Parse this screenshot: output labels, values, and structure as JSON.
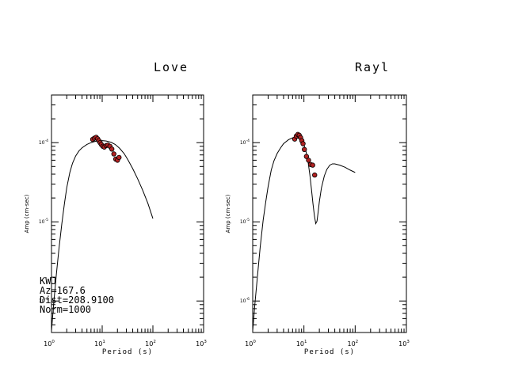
{
  "chart_data": [
    {
      "type": "line",
      "title": "Love",
      "xlabel": "Period (s)",
      "ylabel": "Amp (cm-sec)",
      "x_scale": "log",
      "y_scale": "log",
      "xlim": [
        1,
        1000
      ],
      "ylim": [
        4e-07,
        0.0004
      ],
      "x_ticks": [
        {
          "value": 1,
          "base": "10",
          "exp": "0"
        },
        {
          "value": 10,
          "base": "10",
          "exp": "1"
        },
        {
          "value": 100,
          "base": "10",
          "exp": "2"
        },
        {
          "value": 1000,
          "base": "10",
          "exp": "3"
        }
      ],
      "y_ticks": [
        {
          "value": 1e-06,
          "base": "10",
          "exp": "-6"
        },
        {
          "value": 1e-05,
          "base": "10",
          "exp": "-5"
        },
        {
          "value": 0.0001,
          "base": "10",
          "exp": "-4"
        }
      ],
      "series": [
        {
          "kind": "line",
          "x": [
            1.0,
            1.1,
            1.25,
            1.4,
            1.6,
            1.8,
            2.0,
            2.3,
            2.6,
            3.0,
            3.5,
            4.0,
            5.0,
            6.0,
            7.0,
            8.0,
            10.0,
            12.0,
            15.0,
            18.0,
            22.0,
            27.0,
            32.0,
            40.0,
            50.0,
            63.0,
            80.0,
            100.0
          ],
          "y": [
            4.2e-07,
            9e-07,
            2.2e-06,
            4.5e-06,
            9.5e-06,
            1.7e-05,
            2.7e-05,
            4.2e-05,
            5.5e-05,
            6.8e-05,
            7.9e-05,
            8.6e-05,
            9.5e-05,
            0.0001,
            0.000103,
            0.000105,
            0.000106,
            0.000105,
            0.000101,
            9.5e-05,
            8.5e-05,
            7.3e-05,
            6.1e-05,
            4.7e-05,
            3.5e-05,
            2.5e-05,
            1.7e-05,
            1.1e-05
          ]
        },
        {
          "kind": "scatter",
          "x": [
            6.5,
            7.0,
            7.6,
            8.1,
            8.6,
            9.1,
            9.6,
            10.3,
            11.0,
            12.0,
            13.0,
            14.2,
            15.5,
            17.0,
            18.5,
            20.0,
            21.5
          ],
          "y": [
            0.00011,
            0.000114,
            0.000117,
            0.000112,
            0.000106,
            0.0001,
            9.5e-05,
            9e-05,
            8.8e-05,
            9.2e-05,
            9.3e-05,
            9e-05,
            8.3e-05,
            7.2e-05,
            6.2e-05,
            6e-05,
            6.5e-05
          ]
        }
      ],
      "annotation": [
        "KWJ",
        "Az=167.6",
        "Dist=208.9100",
        "Norm=1000"
      ]
    },
    {
      "type": "line",
      "title": "Rayl",
      "xlabel": "Period (s)",
      "ylabel": "Amp (cm-sec)",
      "x_scale": "log",
      "y_scale": "log",
      "xlim": [
        1,
        1000
      ],
      "ylim": [
        4e-07,
        0.0004
      ],
      "x_ticks": [
        {
          "value": 1,
          "base": "10",
          "exp": "0"
        },
        {
          "value": 10,
          "base": "10",
          "exp": "1"
        },
        {
          "value": 100,
          "base": "10",
          "exp": "2"
        },
        {
          "value": 1000,
          "base": "10",
          "exp": "3"
        }
      ],
      "y_ticks": [
        {
          "value": 1e-06,
          "base": "10",
          "exp": "-6"
        },
        {
          "value": 1e-05,
          "base": "10",
          "exp": "-5"
        },
        {
          "value": 0.0001,
          "base": "10",
          "exp": "-4"
        }
      ],
      "series": [
        {
          "kind": "line",
          "x": [
            1.0,
            1.1,
            1.25,
            1.4,
            1.6,
            1.8,
            2.0,
            2.3,
            2.6,
            3.0,
            3.5,
            4.0,
            5.0,
            6.0,
            7.0,
            8.0,
            9.0,
            10.0,
            11.0,
            12.0,
            13.0,
            14.0,
            15.0,
            16.0,
            17.0,
            18.0,
            19.0,
            20.0,
            22.0,
            25.0,
            28.0,
            32.0,
            36.0,
            40.0,
            50.0,
            63.0,
            80.0,
            100.0
          ],
          "y": [
            4.2e-07,
            9e-07,
            2.2e-06,
            4.8e-06,
            1.05e-05,
            1.8e-05,
            2.8e-05,
            4.5e-05,
            5.9e-05,
            7.3e-05,
            8.6e-05,
            9.7e-05,
            0.000109,
            0.000115,
            0.000116,
            0.000113,
            0.000105,
            9.4e-05,
            7.7e-05,
            5.8e-05,
            4e-05,
            2.6e-05,
            1.7e-05,
            1.2e-05,
            9.5e-06,
            1.02e-05,
            1.35e-05,
            1.8e-05,
            2.7e-05,
            3.8e-05,
            4.6e-05,
            5.2e-05,
            5.4e-05,
            5.4e-05,
            5.2e-05,
            4.9e-05,
            4.5e-05,
            4.2e-05
          ]
        },
        {
          "kind": "scatter",
          "x": [
            6.6,
            7.1,
            7.6,
            8.1,
            8.6,
            9.1,
            9.6,
            10.2,
            11.2,
            12.3,
            13.5,
            14.8,
            16.2
          ],
          "y": [
            0.000111,
            0.000121,
            0.000127,
            0.000124,
            0.000116,
            0.000106,
            9.7e-05,
            8.2e-05,
            6.7e-05,
            6e-05,
            5.3e-05,
            5.2e-05,
            3.9e-05
          ]
        }
      ]
    }
  ],
  "colors": {
    "axis": "#000000",
    "line": "#000000",
    "marker_fill": "#b22222",
    "marker_stroke": "#000000",
    "background": "#ffffff"
  }
}
